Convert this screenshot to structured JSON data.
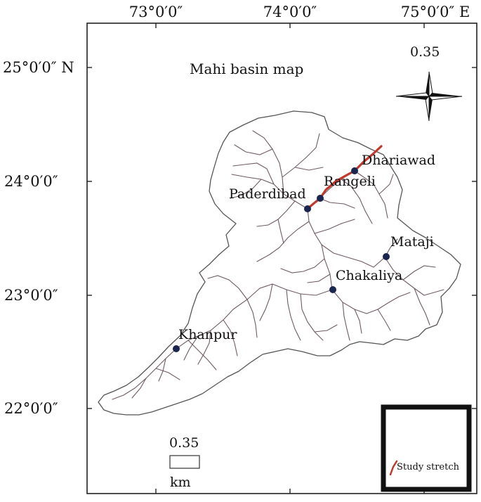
{
  "map": {
    "title": "Mahi basin map",
    "longitude_labels": [
      "73°0′0″",
      "74°0′0″",
      "75°0′0″ E"
    ],
    "latitude_labels": [
      "25°0′0″ N",
      "24°0′0″",
      "23°0′0″",
      "22°0′0″"
    ],
    "north_arrow_value": "0.35",
    "scale_bar": {
      "value": "0.35",
      "unit": "km"
    },
    "legend": {
      "label": "Study stretch",
      "color": "#c0392b"
    },
    "stations": [
      {
        "name": "Dhariawad"
      },
      {
        "name": "Rangeli"
      },
      {
        "name": "Paderdibad"
      },
      {
        "name": "Mataji"
      },
      {
        "name": "Chakaliya"
      },
      {
        "name": "Khanpur"
      }
    ],
    "colors": {
      "boundary": "#555555",
      "streams": "#6e5a66",
      "station": "#1a2550"
    }
  }
}
